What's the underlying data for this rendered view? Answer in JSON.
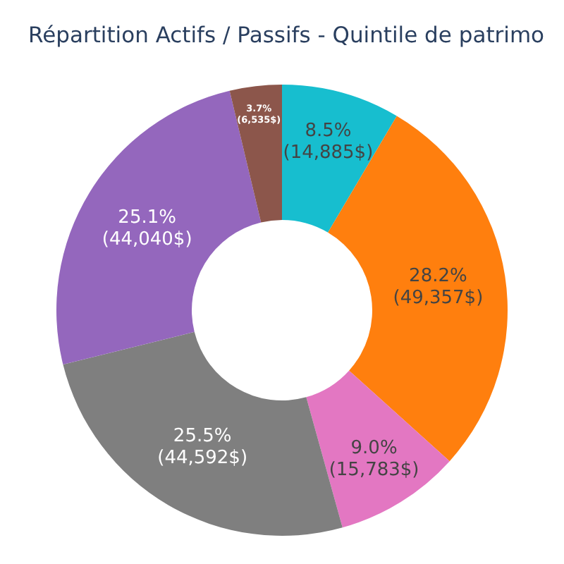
{
  "chart_data": {
    "type": "donut",
    "title": "Répartition Actifs / Passifs - Quintile de patrimo",
    "categories": [
      null,
      null,
      null,
      null,
      null,
      null
    ],
    "values": [
      14885,
      49357,
      15783,
      44592,
      44040,
      6535
    ],
    "colors": [
      "#17becf",
      "#ff7f0e",
      "#e377c2",
      "#7f7f7f",
      "#9467bd",
      "#8c564b"
    ],
    "value_labels": [
      "8.5%\n(14,885$)",
      "28.2%\n(49,357$)",
      "9.0%\n(15,783$)",
      "25.5%\n(44,592$)",
      "25.1%\n(44,040$)",
      "3.7%\n(6,535$)"
    ]
  }
}
